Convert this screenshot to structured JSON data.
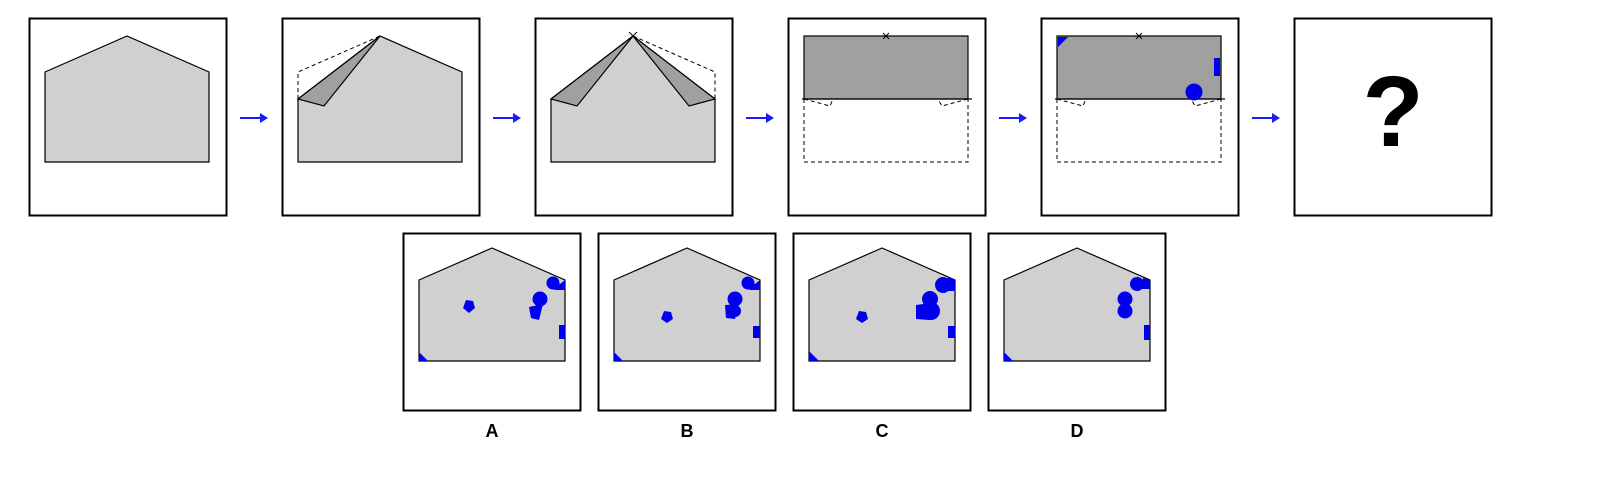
{
  "puzzle": {
    "question_mark": "?",
    "options": [
      {
        "label": "A"
      },
      {
        "label": "B"
      },
      {
        "label": "C"
      },
      {
        "label": "D"
      }
    ]
  },
  "colors": {
    "paper": "#d0d0d0",
    "folded": "#a0a0a0",
    "hole": "#0000ee",
    "arrow": "#1a1aff",
    "stroke": "#000000"
  }
}
